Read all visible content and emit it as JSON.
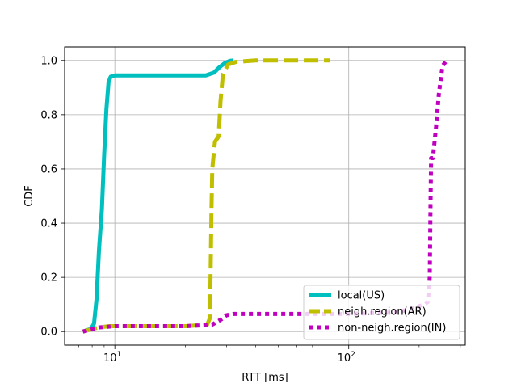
{
  "chart_data": {
    "type": "line",
    "title": "",
    "xlabel": "RTT [ms]",
    "ylabel": "CDF",
    "xscale": "log",
    "xlim": [
      6.1,
      315
    ],
    "ylim": [
      -0.05,
      1.05
    ],
    "grid": true,
    "legend_position": "lower-right",
    "x_ticks": [
      {
        "value": 10,
        "base": "10",
        "exp": "1"
      },
      {
        "value": 100,
        "base": "10",
        "exp": "2"
      }
    ],
    "y_ticks": [
      {
        "value": 0.0,
        "label": "0.0"
      },
      {
        "value": 0.2,
        "label": "0.2"
      },
      {
        "value": 0.4,
        "label": "0.4"
      },
      {
        "value": 0.6,
        "label": "0.6"
      },
      {
        "value": 0.8,
        "label": "0.8"
      },
      {
        "value": 1.0,
        "label": "1.0"
      }
    ],
    "series": [
      {
        "name": "local(US)",
        "color": "#00bfbf",
        "style": "solid",
        "points": [
          [
            7.3,
            0.0
          ],
          [
            7.9,
            0.01
          ],
          [
            8.15,
            0.03
          ],
          [
            8.35,
            0.12
          ],
          [
            8.55,
            0.3
          ],
          [
            8.8,
            0.45
          ],
          [
            9.0,
            0.65
          ],
          [
            9.2,
            0.82
          ],
          [
            9.4,
            0.92
          ],
          [
            9.6,
            0.94
          ],
          [
            10.0,
            0.945
          ],
          [
            15.0,
            0.945
          ],
          [
            20.0,
            0.945
          ],
          [
            24.5,
            0.945
          ],
          [
            26.5,
            0.955
          ],
          [
            28.0,
            0.975
          ],
          [
            29.5,
            0.99
          ],
          [
            31.0,
            0.998
          ],
          [
            32.0,
            1.0
          ]
        ]
      },
      {
        "name": "neigh.region(AR)",
        "color": "#bfbf00",
        "style": "dashed",
        "points": [
          [
            7.3,
            0.0
          ],
          [
            8.5,
            0.015
          ],
          [
            9.5,
            0.02
          ],
          [
            10.0,
            0.02
          ],
          [
            15.0,
            0.02
          ],
          [
            20.0,
            0.02
          ],
          [
            24.8,
            0.025
          ],
          [
            25.5,
            0.05
          ],
          [
            25.7,
            0.25
          ],
          [
            25.9,
            0.45
          ],
          [
            26.1,
            0.6
          ],
          [
            26.8,
            0.7
          ],
          [
            27.8,
            0.72
          ],
          [
            28.3,
            0.85
          ],
          [
            29.0,
            0.95
          ],
          [
            30.5,
            0.985
          ],
          [
            33.0,
            0.995
          ],
          [
            40.0,
            1.0
          ],
          [
            60.0,
            1.0
          ],
          [
            83.0,
            1.0
          ]
        ]
      },
      {
        "name": "non-neigh.region(IN)",
        "color": "#bf00bf",
        "style": "dotted",
        "points": [
          [
            7.3,
            0.0
          ],
          [
            8.5,
            0.015
          ],
          [
            10.0,
            0.02
          ],
          [
            15.0,
            0.02
          ],
          [
            20.0,
            0.02
          ],
          [
            26.0,
            0.025
          ],
          [
            28.5,
            0.045
          ],
          [
            30.0,
            0.06
          ],
          [
            32.0,
            0.065
          ],
          [
            50.0,
            0.065
          ],
          [
            100.0,
            0.065
          ],
          [
            150.0,
            0.07
          ],
          [
            180.0,
            0.08
          ],
          [
            210.0,
            0.1
          ],
          [
            218.0,
            0.11
          ],
          [
            222.0,
            0.2
          ],
          [
            224.0,
            0.5
          ],
          [
            225.0,
            0.64
          ],
          [
            229.0,
            0.64
          ],
          [
            236.0,
            0.75
          ],
          [
            243.0,
            0.88
          ],
          [
            252.0,
            0.98
          ],
          [
            262.0,
            1.0
          ],
          [
            268.0,
            1.0
          ]
        ]
      }
    ]
  }
}
